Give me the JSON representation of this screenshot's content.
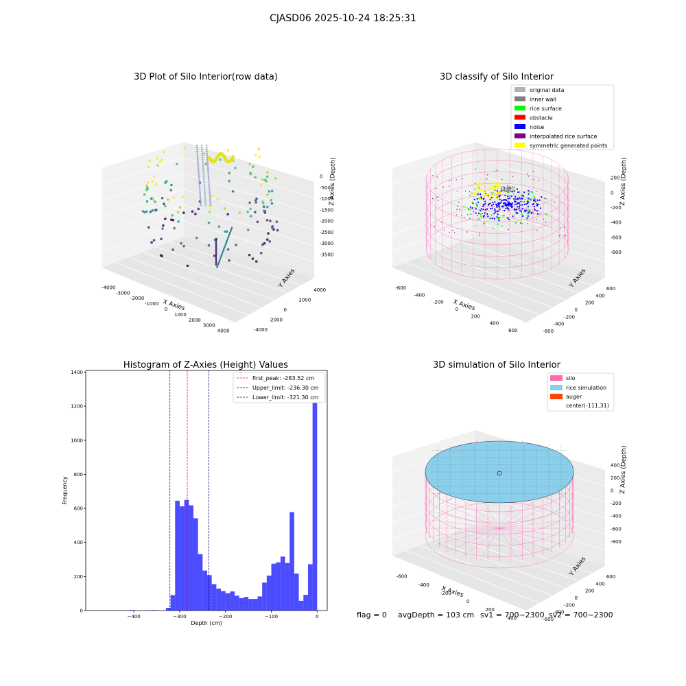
{
  "suptitle": "CJASD06 2025-10-24 18:25:31",
  "footer": {
    "flag": "flag = 0",
    "avg": "avgDepth = 103 cm",
    "sv1": "sv1 = 700~2300",
    "sv2": "sv2 = 700~2300"
  },
  "colors": {
    "hist": "#0000ff",
    "first_peak": "#ff0000",
    "limits": "#00008b",
    "silo": "#ff69b4",
    "rice": "#87ceeb",
    "auger": "#ff4500",
    "original": "#b3b3b3",
    "inner_wall": "#808080",
    "rice_surface": "#00ff00",
    "obstacle": "#ff0000",
    "noise": "#0000ff",
    "interp": "#800080",
    "symmetric": "#ffff00"
  },
  "chart_data": [
    {
      "id": "raw",
      "type": "scatter",
      "title": "3D Plot of Silo Interior(row data)",
      "xlabel": "X Axies",
      "ylabel": "Y Axies",
      "zlabel": "Z Axies (Depth)",
      "xticks": [
        "-4000",
        "-3000",
        "-2000",
        "-1000",
        "0",
        "1000",
        "2000",
        "3000",
        "4000"
      ],
      "yticks": [
        "-4000",
        "-2000",
        "0",
        "2000",
        "4000"
      ],
      "zticks": [
        "0",
        "-500",
        "-1000",
        "-1500",
        "-2000",
        "-2500",
        "-3000",
        "-3500"
      ],
      "xlim": [
        -4500,
        4500
      ],
      "ylim": [
        -4500,
        4500
      ],
      "zlim": [
        -3800,
        200
      ],
      "colormap": "viridis"
    },
    {
      "id": "classify",
      "type": "scatter",
      "title": "3D classify of Silo Interior",
      "xlabel": "X Axies",
      "ylabel": "Y Axies",
      "zlabel": "Z Axies (Depth)",
      "xticks": [
        "-600",
        "-400",
        "-200",
        "0",
        "200",
        "400",
        "600"
      ],
      "yticks": [
        "-600",
        "-400",
        "-200",
        "0",
        "200",
        "400",
        "600"
      ],
      "zticks": [
        "200",
        "0",
        "-200",
        "-400",
        "-600",
        "-800"
      ],
      "xlim": [
        -700,
        650
      ],
      "ylim": [
        -700,
        650
      ],
      "zlim": [
        -900,
        300
      ],
      "legend_position": "top-right",
      "legend": [
        "original data",
        "inner wall",
        "rice surface",
        "obstacle",
        "noise",
        "interpolated rice surface",
        "symmetric generated points"
      ]
    },
    {
      "id": "hist",
      "type": "bar",
      "title": "Histogram of Z-Axies (Height) Values",
      "xlabel": "Depth (cm)",
      "ylabel": "Frequency",
      "xlim": [
        -505,
        22
      ],
      "ylim": [
        0,
        1410
      ],
      "xticks": [
        -400,
        -300,
        -200,
        -100,
        0
      ],
      "yticks": [
        0,
        200,
        400,
        600,
        800,
        1000,
        1200,
        1400
      ],
      "bin_width": 10,
      "bin_starts": [
        -410,
        -360,
        -330,
        -320,
        -310,
        -300,
        -290,
        -280,
        -270,
        -260,
        -250,
        -240,
        -230,
        -220,
        -210,
        -200,
        -190,
        -180,
        -170,
        -160,
        -150,
        -140,
        -130,
        -120,
        -110,
        -100,
        -90,
        -80,
        -70,
        -60,
        -50,
        -40,
        -30,
        -20,
        -10
      ],
      "values": [
        3,
        3,
        16,
        91,
        645,
        612,
        650,
        618,
        542,
        331,
        235,
        208,
        155,
        129,
        114,
        102,
        112,
        87,
        73,
        80,
        68,
        68,
        83,
        164,
        205,
        275,
        283,
        317,
        279,
        578,
        217,
        57,
        92,
        272,
        1335
      ],
      "lines": [
        {
          "name": "first_peak: -283.52 cm",
          "x": -283.52,
          "color_key": "first_peak"
        },
        {
          "name": "Upper_limit: -236.30 cm",
          "x": -236.3,
          "color_key": "limits"
        },
        {
          "name": "Lower_limit: -321.30 cm",
          "x": -321.3,
          "color_key": "limits"
        }
      ],
      "legend_position": "top-right"
    },
    {
      "id": "sim",
      "type": "surface",
      "title": "3D simulation of Silo Interior",
      "xlabel": "X Axies",
      "ylabel": "Y Axies",
      "zlabel": "Z Axies (Depth)",
      "xticks": [
        "-600",
        "-400",
        "-200",
        "0",
        "200",
        "400"
      ],
      "yticks": [
        "-600",
        "-400",
        "-200",
        "0",
        "200",
        "400",
        "600"
      ],
      "zticks": [
        "400",
        "200",
        "0",
        "-200",
        "-400",
        "-600",
        "-800"
      ],
      "xlim": [
        -750,
        600
      ],
      "ylim": [
        -700,
        650
      ],
      "zlim": [
        -900,
        450
      ],
      "legend_position": "top-right",
      "legend": [
        "silo",
        "rice simulation",
        "auger",
        "center(-111,31)"
      ]
    }
  ]
}
